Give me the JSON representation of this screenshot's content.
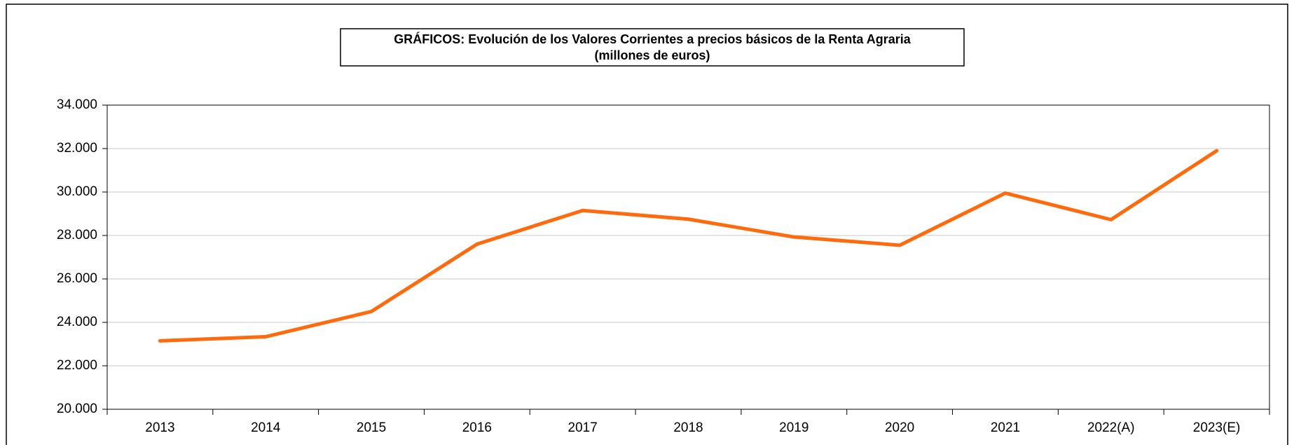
{
  "chart_data": {
    "type": "line",
    "title": "GRÁFICOS: Evolución de los Valores Corrientes a precios básicos de la Renta Agraria",
    "subtitle": "(millones  de euros)",
    "categories": [
      "2013",
      "2014",
      "2015",
      "2016",
      "2017",
      "2018",
      "2019",
      "2020",
      "2021",
      "2022(A)",
      "2023(E)"
    ],
    "series": [
      {
        "name": "Renta Agraria",
        "color": "#ff6a0d",
        "values": [
          23150,
          23340,
          24500,
          27600,
          29150,
          28750,
          27930,
          27550,
          29950,
          28730,
          31900
        ]
      }
    ],
    "ylim": [
      20000,
      34000
    ],
    "yticks": [
      {
        "value": 20000,
        "label": "20.000"
      },
      {
        "value": 22000,
        "label": "22.000"
      },
      {
        "value": 24000,
        "label": "24.000"
      },
      {
        "value": 26000,
        "label": "26.000"
      },
      {
        "value": 28000,
        "label": "28.000"
      },
      {
        "value": 30000,
        "label": "30.000"
      },
      {
        "value": 32000,
        "label": "32.000"
      },
      {
        "value": 34000,
        "label": "34.000"
      }
    ],
    "grid": true
  }
}
